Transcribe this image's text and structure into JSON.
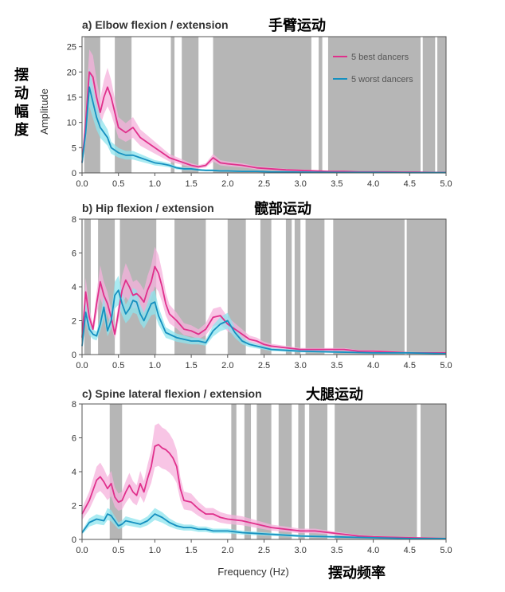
{
  "figure": {
    "side_label": "摆动幅度",
    "y_axis_label": "Amplitude",
    "x_axis_label": "Frequency (Hz)",
    "x_cjk_label": "摆动频率",
    "legend": [
      "5 best dancers",
      "5 worst dancers"
    ]
  },
  "colors": {
    "best": "#e0308c",
    "best_band": "#f6b2dc",
    "worst": "#1590c0",
    "worst_band": "#8ee4ee",
    "shade": "#b6b6b6",
    "axis": "#555555"
  },
  "chart_data": [
    {
      "type": "line",
      "title": "a) Elbow flexion / extension",
      "title_cjk": "手臂运动",
      "xlabel": "",
      "ylabel": "Amplitude",
      "xlim": [
        0,
        5
      ],
      "ylim": [
        0,
        27
      ],
      "xticks": [
        "0.0",
        "0.5",
        "1.0",
        "1.5",
        "2.0",
        "2.5",
        "3.0",
        "3.5",
        "4.0",
        "4.5",
        "5.0"
      ],
      "yticks": [
        "0",
        "5",
        "10",
        "15",
        "20",
        "25"
      ],
      "shaded_x_ranges": [
        [
          0.03,
          0.25
        ],
        [
          0.45,
          0.68
        ],
        [
          1.22,
          1.27
        ],
        [
          1.37,
          1.6
        ],
        [
          1.8,
          3.15
        ],
        [
          3.25,
          3.3
        ],
        [
          3.38,
          4.65
        ],
        [
          4.68,
          4.85
        ],
        [
          4.88,
          5.0
        ]
      ],
      "series": [
        {
          "name": "5 best dancers",
          "x": [
            0,
            0.05,
            0.1,
            0.15,
            0.2,
            0.25,
            0.3,
            0.35,
            0.4,
            0.45,
            0.5,
            0.6,
            0.7,
            0.8,
            0.9,
            1.0,
            1.1,
            1.2,
            1.3,
            1.4,
            1.5,
            1.6,
            1.7,
            1.8,
            1.9,
            2.0,
            2.2,
            2.4,
            2.6,
            2.8,
            3.0,
            3.2,
            3.4,
            3.6,
            3.8,
            4.0,
            4.2,
            4.4,
            4.6,
            4.8,
            5.0
          ],
          "values": [
            2,
            10,
            20,
            19,
            15,
            12,
            15,
            17,
            15,
            12,
            9,
            8,
            9,
            7,
            6,
            5,
            4,
            3,
            2.5,
            2,
            1.5,
            1.2,
            1.5,
            3,
            2,
            1.8,
            1.5,
            1,
            0.8,
            0.6,
            0.5,
            0.4,
            0.3,
            0.3,
            0.2,
            0.2,
            0.2,
            0.15,
            0.15,
            0.1,
            0.1
          ]
        },
        {
          "name": "5 worst dancers",
          "x": [
            0,
            0.05,
            0.1,
            0.15,
            0.2,
            0.25,
            0.3,
            0.35,
            0.4,
            0.5,
            0.6,
            0.7,
            0.8,
            0.9,
            1.0,
            1.1,
            1.2,
            1.3,
            1.4,
            1.5,
            1.6,
            1.7,
            1.8,
            1.9,
            2.0,
            2.2,
            2.4,
            2.6,
            2.8,
            3.0,
            3.5,
            4.0,
            4.5,
            5.0
          ],
          "values": [
            2,
            8,
            17,
            14,
            11,
            9,
            8,
            7,
            5,
            4,
            3.5,
            3.5,
            3,
            2.5,
            2,
            1.8,
            1.5,
            1,
            0.8,
            0.8,
            0.6,
            0.5,
            0.5,
            0.4,
            0.4,
            0.3,
            0.3,
            0.2,
            0.2,
            0.15,
            0.1,
            0.1,
            0.05,
            0.05
          ]
        }
      ]
    },
    {
      "type": "line",
      "title": "b) Hip flexion / extension",
      "title_cjk": "髋部运动",
      "xlabel": "",
      "ylabel": "",
      "xlim": [
        0,
        5
      ],
      "ylim": [
        0,
        8
      ],
      "xticks": [
        "0.0",
        "0.5",
        "1.0",
        "1.5",
        "2.0",
        "2.5",
        "3.0",
        "3.5",
        "4.0",
        "4.5",
        "5.0"
      ],
      "yticks": [
        "0",
        "2",
        "4",
        "6",
        "8"
      ],
      "shaded_x_ranges": [
        [
          0.03,
          0.12
        ],
        [
          0.22,
          0.45
        ],
        [
          0.52,
          1.02
        ],
        [
          1.27,
          1.7
        ],
        [
          2.0,
          2.25
        ],
        [
          2.45,
          2.6
        ],
        [
          2.8,
          2.88
        ],
        [
          2.92,
          3.0
        ],
        [
          3.07,
          3.33
        ],
        [
          3.45,
          4.43
        ],
        [
          4.46,
          5.0
        ]
      ],
      "series": [
        {
          "name": "5 best dancers",
          "x": [
            0,
            0.05,
            0.1,
            0.15,
            0.2,
            0.25,
            0.3,
            0.35,
            0.4,
            0.45,
            0.5,
            0.55,
            0.6,
            0.65,
            0.7,
            0.75,
            0.8,
            0.85,
            0.9,
            0.95,
            1.0,
            1.05,
            1.1,
            1.15,
            1.2,
            1.3,
            1.4,
            1.5,
            1.6,
            1.7,
            1.8,
            1.9,
            2.0,
            2.1,
            2.2,
            2.3,
            2.4,
            2.5,
            2.6,
            2.8,
            3.0,
            3.2,
            3.4,
            3.6,
            3.8,
            4.0,
            4.5,
            5.0
          ],
          "values": [
            1,
            3.7,
            2.2,
            1.5,
            3,
            4.3,
            3.5,
            3,
            2.2,
            1.2,
            2.5,
            3.8,
            4.4,
            4,
            3.5,
            3.6,
            3.4,
            3.1,
            3.8,
            4.3,
            5.2,
            4.8,
            4,
            3,
            2.4,
            2,
            1.5,
            1.4,
            1.2,
            1.5,
            2.2,
            2.3,
            1.8,
            1.5,
            1.2,
            0.9,
            0.8,
            0.6,
            0.5,
            0.4,
            0.3,
            0.3,
            0.3,
            0.3,
            0.2,
            0.2,
            0.1,
            0.1
          ]
        },
        {
          "name": "5 worst dancers",
          "x": [
            0,
            0.05,
            0.1,
            0.15,
            0.2,
            0.25,
            0.3,
            0.35,
            0.4,
            0.45,
            0.5,
            0.55,
            0.6,
            0.65,
            0.7,
            0.75,
            0.8,
            0.85,
            0.9,
            0.95,
            1.0,
            1.05,
            1.1,
            1.15,
            1.2,
            1.3,
            1.4,
            1.5,
            1.6,
            1.7,
            1.8,
            1.9,
            2.0,
            2.1,
            2.2,
            2.3,
            2.4,
            2.5,
            2.6,
            2.8,
            3.0,
            3.5,
            4.0,
            4.5,
            5.0
          ],
          "values": [
            0.5,
            2.5,
            1.5,
            1.2,
            1.1,
            1.8,
            2.8,
            1.4,
            2,
            3.5,
            3.8,
            3,
            2.4,
            2.7,
            3.2,
            3.1,
            2.4,
            2,
            2.5,
            3,
            3.1,
            2.3,
            1.8,
            1.3,
            1.2,
            1,
            0.9,
            0.8,
            0.8,
            0.7,
            1.4,
            1.8,
            2,
            1.3,
            0.8,
            0.6,
            0.5,
            0.4,
            0.3,
            0.25,
            0.2,
            0.15,
            0.1,
            0.1,
            0.05
          ]
        }
      ]
    },
    {
      "type": "line",
      "title": "c) Spine lateral flexion / extension",
      "title_cjk": "大腿运动",
      "xlabel": "Frequency (Hz)",
      "ylabel": "",
      "xlim": [
        0,
        5
      ],
      "ylim": [
        0,
        8
      ],
      "xticks": [
        "0.0",
        "0.5",
        "1.0",
        "1.5",
        "2.0",
        "2.5",
        "3.0",
        "3.5",
        "4.0",
        "4.5",
        "5.0"
      ],
      "yticks": [
        "0",
        "2",
        "4",
        "6",
        "8"
      ],
      "shaded_x_ranges": [
        [
          0.38,
          0.55
        ],
        [
          2.05,
          2.12
        ],
        [
          2.23,
          2.32
        ],
        [
          2.4,
          2.6
        ],
        [
          2.7,
          2.88
        ],
        [
          2.97,
          3.06
        ],
        [
          3.12,
          3.37
        ],
        [
          3.47,
          4.6
        ],
        [
          4.65,
          5.0
        ]
      ],
      "series": [
        {
          "name": "5 best dancers",
          "x": [
            0,
            0.1,
            0.2,
            0.25,
            0.3,
            0.35,
            0.4,
            0.45,
            0.5,
            0.55,
            0.6,
            0.65,
            0.7,
            0.75,
            0.8,
            0.85,
            0.9,
            0.95,
            1.0,
            1.05,
            1.1,
            1.15,
            1.2,
            1.25,
            1.3,
            1.35,
            1.4,
            1.5,
            1.6,
            1.7,
            1.8,
            1.9,
            2.0,
            2.2,
            2.4,
            2.6,
            2.8,
            3.0,
            3.2,
            3.4,
            3.6,
            3.8,
            4.0,
            4.5,
            5.0
          ],
          "values": [
            1.5,
            2.3,
            3.5,
            3.7,
            3.4,
            3,
            3.3,
            2.5,
            2.2,
            2.3,
            2.8,
            3.2,
            2.8,
            2.6,
            3.3,
            2.8,
            3.6,
            4.3,
            5.5,
            5.6,
            5.4,
            5.3,
            5.1,
            4.8,
            4.3,
            3,
            2.3,
            2.2,
            1.8,
            1.5,
            1.5,
            1.3,
            1.2,
            1.1,
            0.9,
            0.7,
            0.6,
            0.5,
            0.5,
            0.4,
            0.3,
            0.2,
            0.15,
            0.1,
            0.05
          ]
        },
        {
          "name": "5 worst dancers",
          "x": [
            0,
            0.1,
            0.2,
            0.3,
            0.35,
            0.4,
            0.45,
            0.5,
            0.55,
            0.6,
            0.7,
            0.8,
            0.9,
            1.0,
            1.1,
            1.2,
            1.3,
            1.4,
            1.5,
            1.6,
            1.7,
            1.8,
            2.0,
            2.2,
            2.4,
            2.6,
            2.8,
            3.0,
            3.5,
            4.0,
            4.5,
            5.0
          ],
          "values": [
            0.4,
            1,
            1.2,
            1.1,
            1.5,
            1.4,
            1.1,
            0.8,
            0.9,
            1.1,
            1,
            0.9,
            1.1,
            1.5,
            1.3,
            1,
            0.8,
            0.7,
            0.7,
            0.6,
            0.6,
            0.5,
            0.5,
            0.4,
            0.35,
            0.3,
            0.25,
            0.2,
            0.15,
            0.1,
            0.05,
            0.05
          ]
        }
      ]
    }
  ]
}
